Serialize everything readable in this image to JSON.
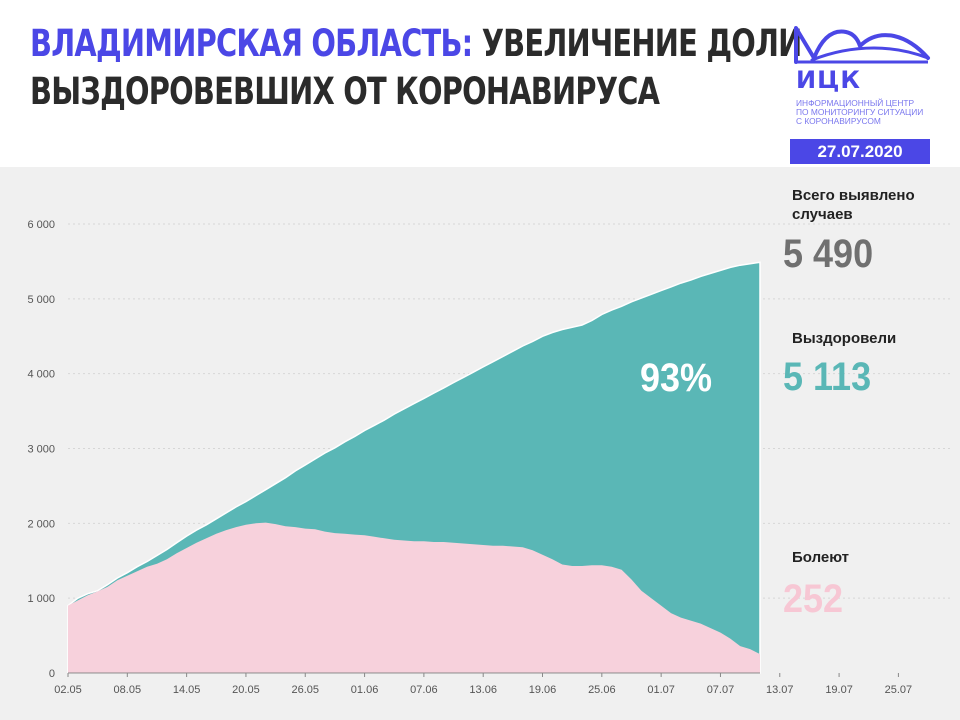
{
  "header": {
    "title_part1": "ВЛАДИМИРСКАЯ ОБЛАСТЬ:",
    "title_part2": "УВЕЛИЧЕНИЕ ДОЛИ",
    "title_line2": "ВЫЗДОРОВЕВШИХ ОТ КОРОНАВИРУСА"
  },
  "logo": {
    "name": "ИЦК",
    "subtitle_lines": [
      "ИНФОРМАЦИОННЫЙ ЦЕНТР",
      "ПО МОНИТОРИНГУ СИТУАЦИИ",
      "С КОРОНАВИРУСОМ"
    ],
    "date": "27.07.2020"
  },
  "stats": {
    "total_label": "Всего выявлено случаев",
    "total_value": "5 490",
    "recovered_label": "Выздоровели",
    "recovered_value": "5 113",
    "sick_label": "Болеют",
    "sick_value": "252",
    "recovered_share": "93%"
  },
  "colors": {
    "accent": "#4b47e6",
    "recovered": "#5ab7b6",
    "sick": "#f7d1dc",
    "total_text": "#707070",
    "background": "#f0f0f0"
  },
  "chart_data": {
    "type": "area",
    "x_tick_labels": [
      "02.05",
      "08.05",
      "14.05",
      "20.05",
      "26.05",
      "01.06",
      "07.06",
      "13.06",
      "19.06",
      "25.06",
      "01.07",
      "07.07",
      "13.07",
      "19.07",
      "25.07"
    ],
    "y_ticks": [
      0,
      1000,
      2000,
      3000,
      4000,
      5000,
      6000
    ],
    "y_tick_labels": [
      "0",
      "1 000",
      "2 000",
      "3 000",
      "4 000",
      "5 000",
      "6 000"
    ],
    "ylim": [
      0,
      6000
    ],
    "x_start": "02.05",
    "x_end": "27.07",
    "series": [
      {
        "key": "total",
        "values": [
          900,
          1000,
          1060,
          1100,
          1180,
          1270,
          1340,
          1420,
          1490,
          1570,
          1650,
          1740,
          1830,
          1910,
          1980,
          2060,
          2140,
          2220,
          2290,
          2370,
          2450,
          2530,
          2610,
          2700,
          2780,
          2860,
          2940,
          3010,
          3090,
          3160,
          3240,
          3310,
          3380,
          3460,
          3530,
          3600,
          3670,
          3740,
          3810,
          3880,
          3950,
          4020,
          4090,
          4160,
          4230,
          4300,
          4370,
          4430,
          4500,
          4550,
          4590,
          4620,
          4650,
          4710,
          4790,
          4850,
          4900,
          4960,
          5010,
          5060,
          5110,
          5160,
          5210,
          5250,
          5300,
          5340,
          5380,
          5420,
          5450,
          5470,
          5490
        ]
      },
      {
        "key": "sick",
        "values": [
          900,
          970,
          1040,
          1090,
          1150,
          1240,
          1300,
          1360,
          1420,
          1460,
          1520,
          1600,
          1670,
          1740,
          1800,
          1860,
          1910,
          1950,
          1980,
          2000,
          2010,
          1990,
          1960,
          1950,
          1930,
          1920,
          1890,
          1870,
          1860,
          1850,
          1840,
          1820,
          1800,
          1780,
          1770,
          1760,
          1760,
          1750,
          1750,
          1740,
          1730,
          1720,
          1710,
          1700,
          1700,
          1690,
          1680,
          1640,
          1580,
          1520,
          1450,
          1430,
          1430,
          1440,
          1440,
          1420,
          1380,
          1250,
          1100,
          1000,
          900,
          800,
          740,
          700,
          660,
          600,
          540,
          460,
          360,
          320,
          252
        ]
      }
    ]
  }
}
